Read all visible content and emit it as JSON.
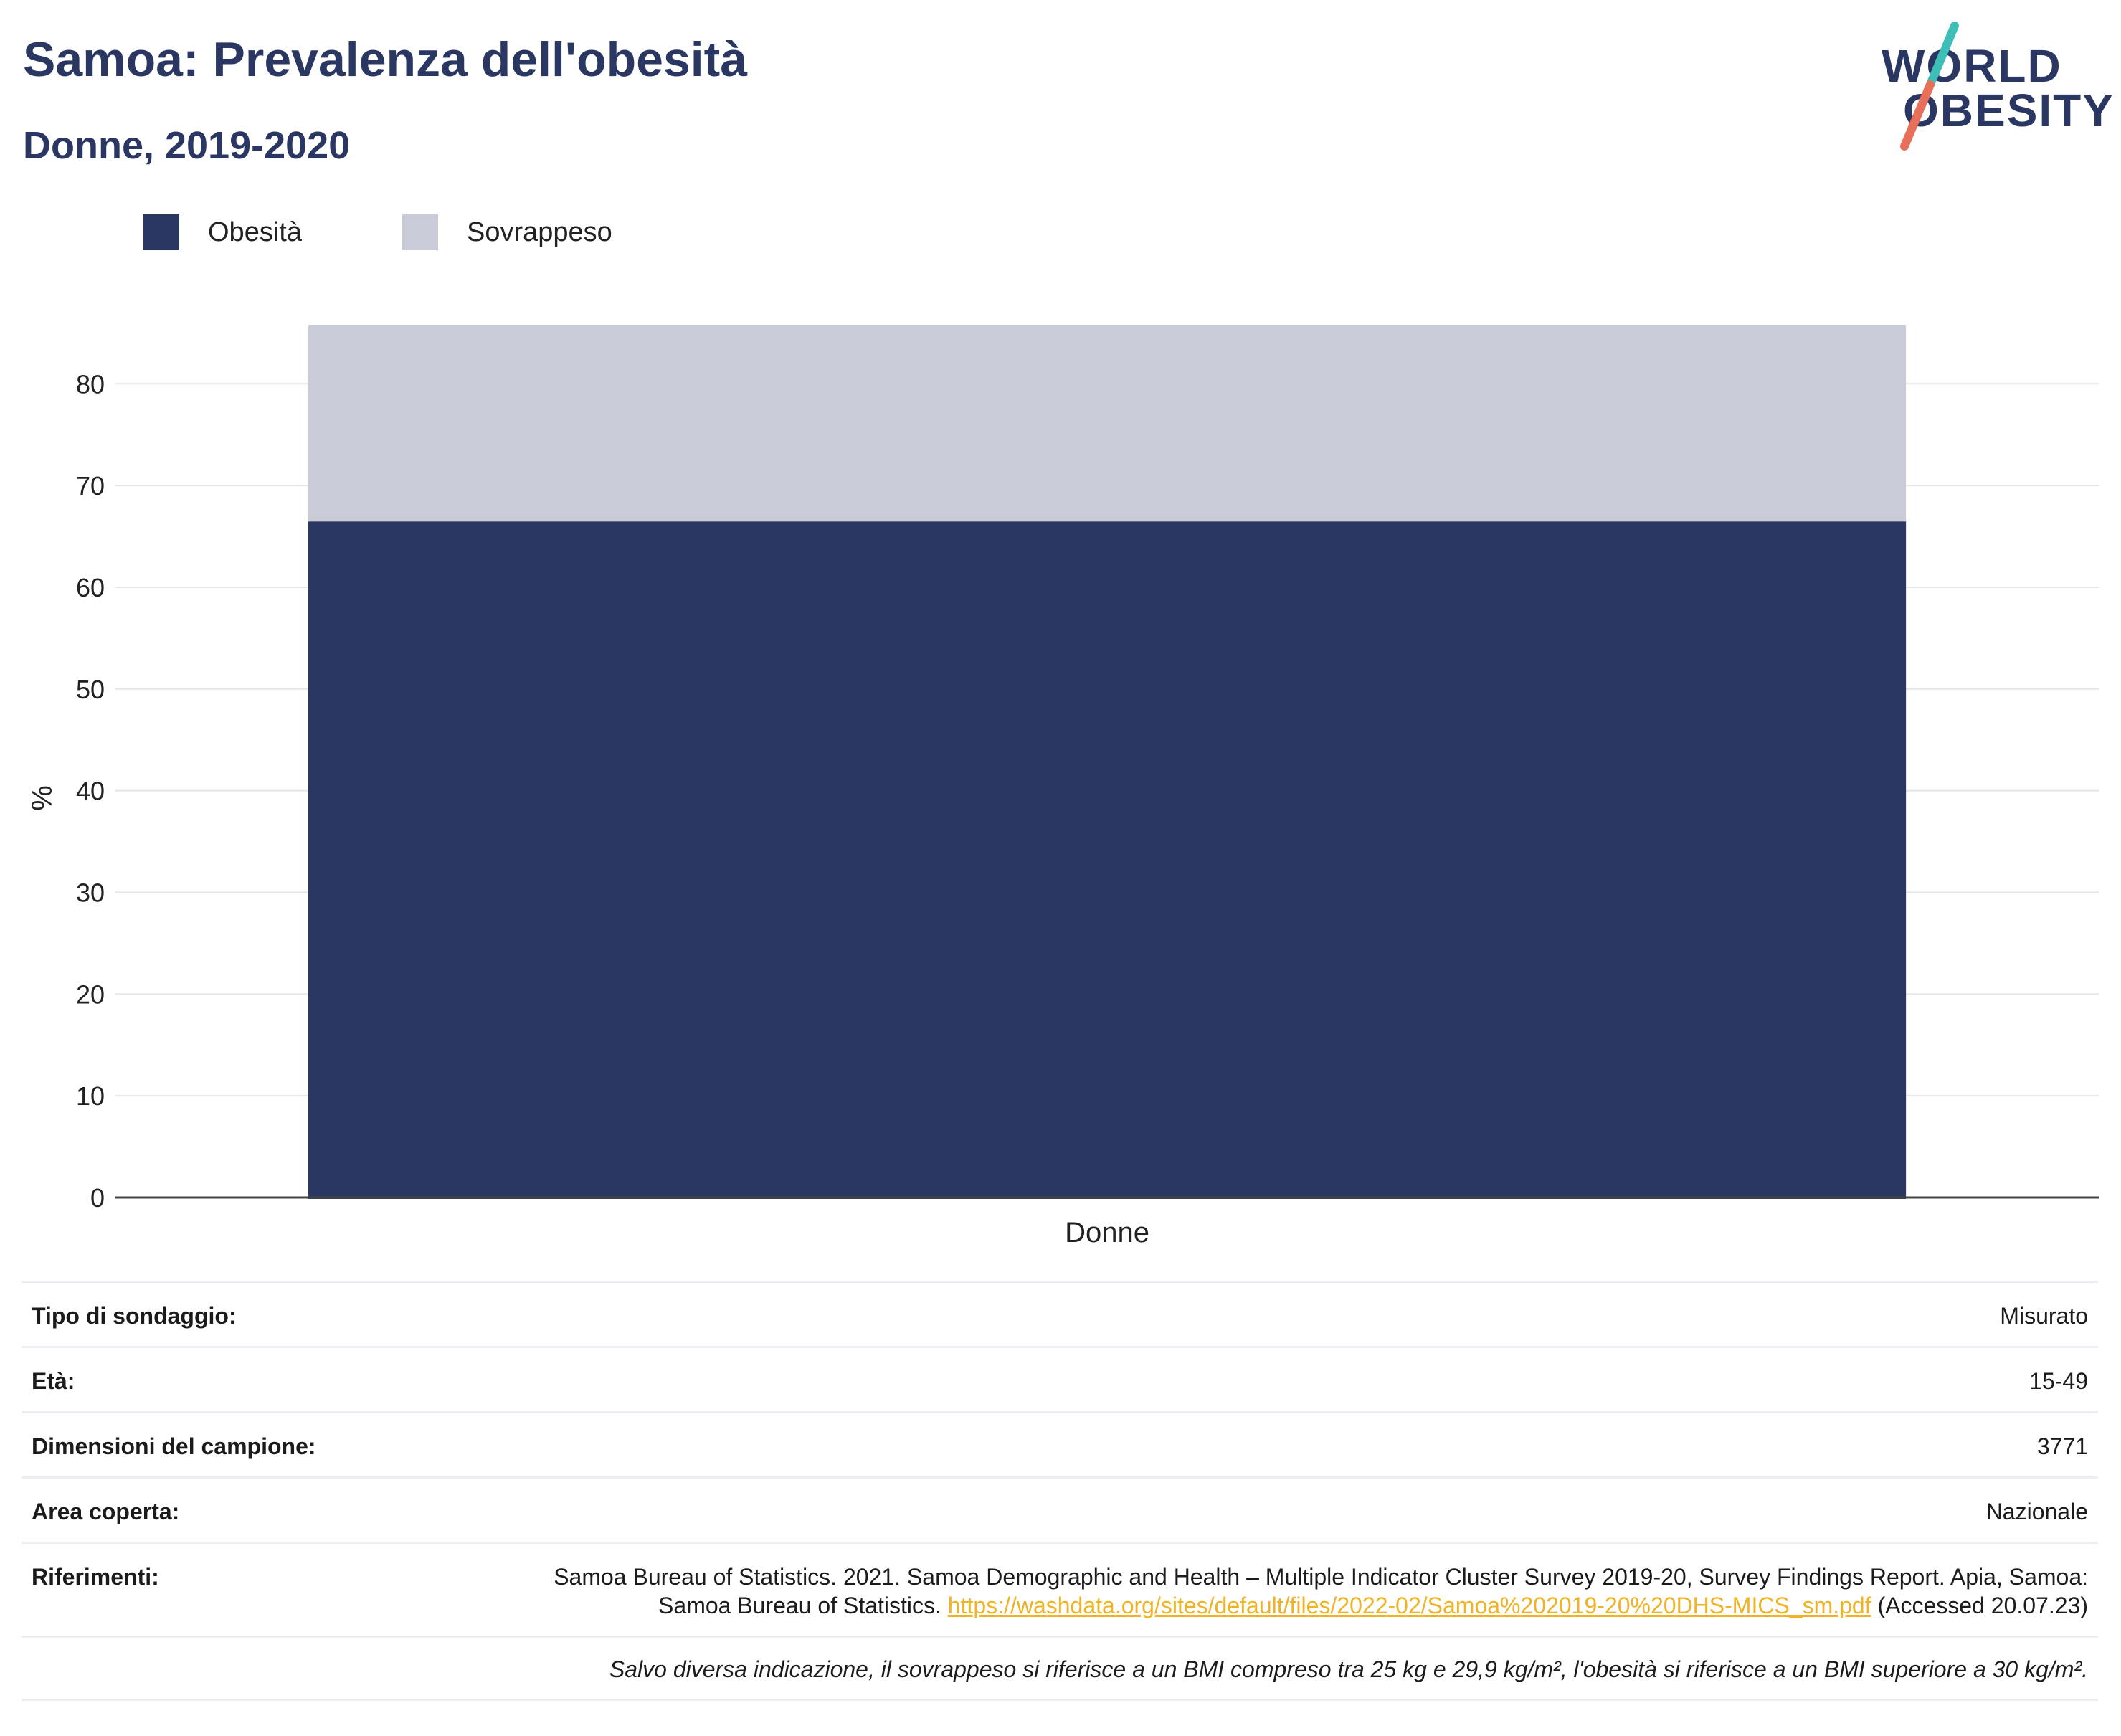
{
  "header": {
    "title": "Samoa: Prevalenza dell'obesità",
    "subtitle": "Donne, 2019-2020"
  },
  "logo": {
    "line1": "WORLD",
    "line2": "OBESITY"
  },
  "colors": {
    "obesity": "#2b3763",
    "overweight": "#c9ccd8",
    "brand": "#2b3763",
    "link": "#f0b323",
    "logo_teal": "#3dbfb8",
    "logo_coral": "#e8705a"
  },
  "chart_data": {
    "type": "bar",
    "stacked": true,
    "categories": [
      "Donne"
    ],
    "series": [
      {
        "name": "Obesità",
        "values": [
          66.6
        ]
      },
      {
        "name": "Sovrappeso",
        "values": [
          19.2
        ]
      }
    ],
    "title": "Samoa: Prevalenza dell'obesità",
    "subtitle": "Donne, 2019-2020",
    "xlabel": "",
    "ylabel": "%",
    "ylim": [
      0,
      87
    ],
    "yticks": [
      0,
      10,
      20,
      30,
      40,
      50,
      60,
      70,
      80
    ],
    "grid": true,
    "legend_position": "top-left"
  },
  "info": {
    "survey_type_label": "Tipo di sondaggio:",
    "survey_type_value": "Misurato",
    "age_label": "Età:",
    "age_value": "15-49",
    "sample_label": "Dimensioni del campione:",
    "sample_value": "3771",
    "area_label": "Area coperta:",
    "area_value": "Nazionale",
    "references_label": "Riferimenti:",
    "references_text": "Samoa Bureau of Statistics. 2021. Samoa Demographic and Health – Multiple Indicator Cluster Survey 2019-20, Survey Findings Report. Apia, Samoa: Samoa Bureau of Statistics.",
    "references_link": "https://washdata.org/sites/default/files/2022-02/Samoa%202019-20%20DHS-MICS_sm.pdf",
    "references_accessed": "(Accessed 20.07.23)"
  },
  "footnote": "Salvo diversa indicazione, il sovrappeso si riferisce a un BMI compreso tra 25 kg e 29,9 kg/m², l'obesità si riferisce a un BMI superiore a 30 kg/m²."
}
